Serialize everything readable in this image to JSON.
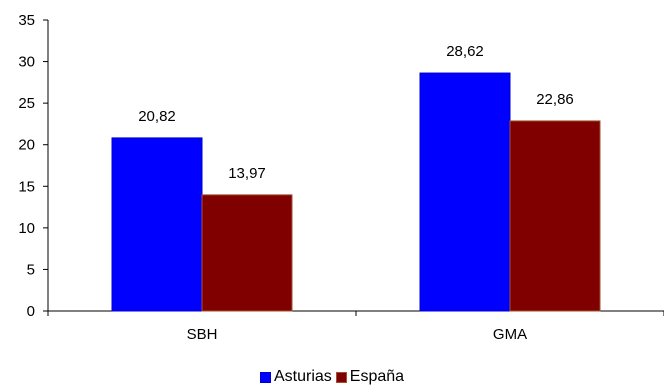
{
  "chart_data": {
    "type": "bar",
    "categories": [
      "SBH",
      "GMA"
    ],
    "series": [
      {
        "name": "Asturias",
        "values": [
          20.82,
          28.62
        ],
        "labels": [
          "20,82",
          "28,62"
        ],
        "color": "#0000FF"
      },
      {
        "name": "España",
        "values": [
          13.97,
          22.86
        ],
        "labels": [
          "13,97",
          "22,86"
        ],
        "color": "#800000"
      }
    ],
    "y_ticks": [
      "0",
      "5",
      "10",
      "15",
      "20",
      "25",
      "30",
      "35"
    ],
    "ylim": [
      0,
      35
    ],
    "grid": false,
    "legend_position": "bottom"
  }
}
